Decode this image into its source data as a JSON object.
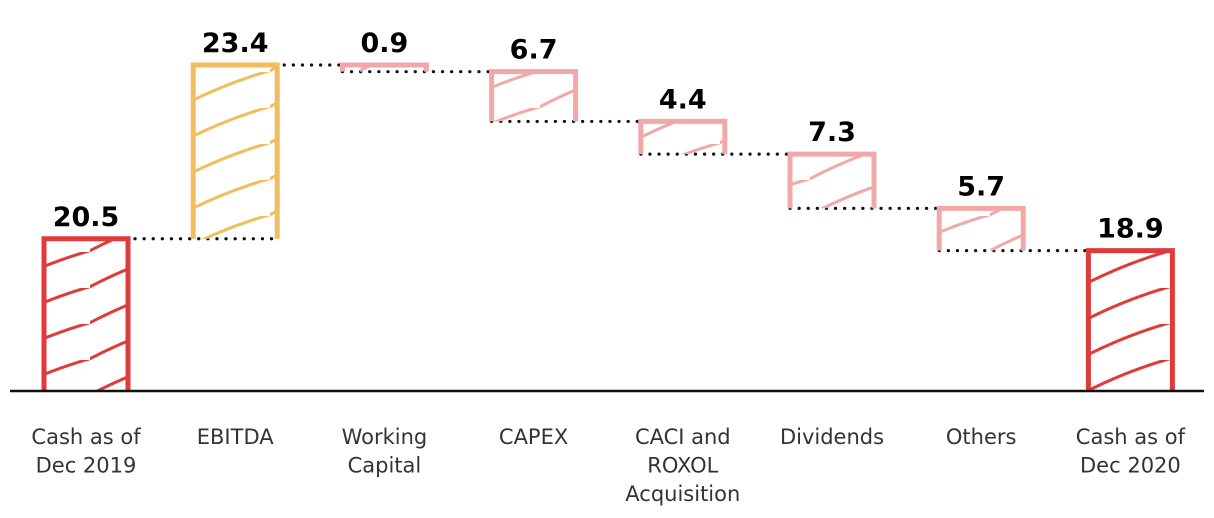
{
  "chart_data": {
    "type": "waterfall",
    "categories": [
      [
        "Cash as of",
        "Dec 2019"
      ],
      [
        "EBITDA"
      ],
      [
        "Working",
        "Capital"
      ],
      [
        "CAPEX"
      ],
      [
        "CACI and",
        "ROXOL",
        "Acquisition"
      ],
      [
        "Dividends"
      ],
      [
        "Others"
      ],
      [
        "Cash as of",
        "Dec 2020"
      ]
    ],
    "steps": [
      {
        "kind": "total",
        "value": 20.5,
        "label": "20.5"
      },
      {
        "kind": "increase",
        "value": 23.4,
        "label": "23.4"
      },
      {
        "kind": "decrease",
        "value": 0.9,
        "label": "0.9"
      },
      {
        "kind": "decrease",
        "value": 6.7,
        "label": "6.7"
      },
      {
        "kind": "decrease",
        "value": 4.4,
        "label": "4.4"
      },
      {
        "kind": "decrease",
        "value": 7.3,
        "label": "7.3"
      },
      {
        "kind": "decrease",
        "value": 5.7,
        "label": "5.7"
      },
      {
        "kind": "total",
        "value": 18.9,
        "label": "18.9"
      }
    ],
    "ylim": [
      0,
      44
    ],
    "grid": false,
    "legend": "none",
    "connectors": "dotted",
    "colors": {
      "total": "#e03a3a",
      "increase": "#f2bd5c",
      "decrease": "#f0a8a8",
      "connector": "#111111",
      "axis": "#111111"
    }
  }
}
